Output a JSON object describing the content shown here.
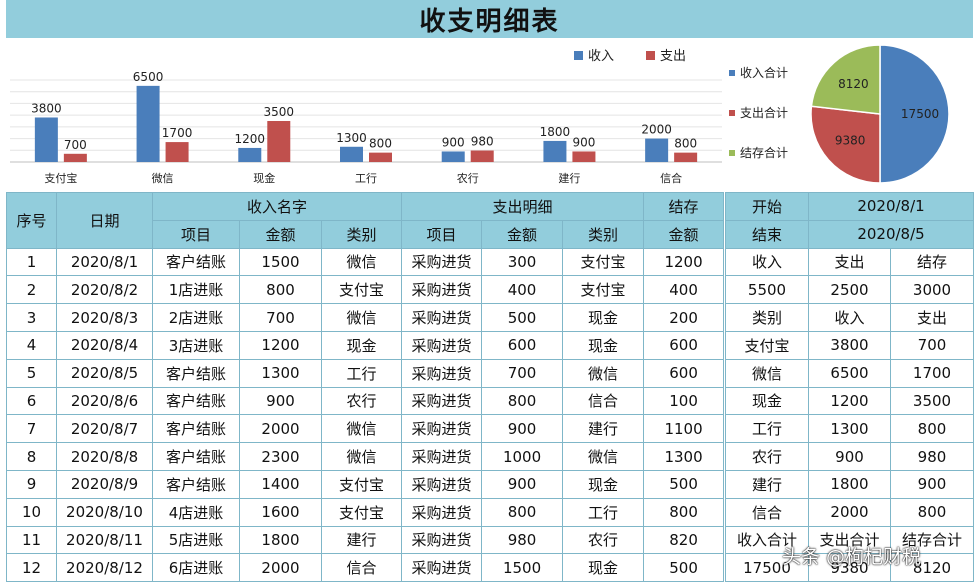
{
  "title": "收支明细表",
  "colors": {
    "income": "#4a7ebb",
    "expense": "#c0504d",
    "balance": "#9bbb59",
    "header": "#92cddc"
  },
  "chart_data": [
    {
      "type": "bar",
      "categories": [
        "支付宝",
        "微信",
        "现金",
        "工行",
        "农行",
        "建行",
        "信合"
      ],
      "series": [
        {
          "name": "收入",
          "values": [
            3800,
            6500,
            1200,
            1300,
            900,
            1800,
            2000
          ]
        },
        {
          "name": "支出",
          "values": [
            700,
            1700,
            3500,
            800,
            980,
            900,
            800
          ]
        }
      ],
      "legend": "top-right",
      "grid": true
    },
    {
      "type": "pie",
      "labels": [
        "收入合计",
        "支出合计",
        "结存合计"
      ],
      "values": [
        17500,
        9380,
        8120
      ],
      "legend": "left"
    }
  ],
  "table": {
    "headers": {
      "seq": "序号",
      "date": "日期",
      "income_group": "收入名字",
      "expense_group": "支出明细",
      "balance_top": "结存",
      "balance_bottom": "金额",
      "item": "项目",
      "amount": "金额",
      "category": "类别"
    },
    "rows": [
      [
        "1",
        "2020/8/1",
        "客户结账",
        "1500",
        "微信",
        "采购进货",
        "300",
        "支付宝",
        "1200"
      ],
      [
        "2",
        "2020/8/2",
        "1店进账",
        "800",
        "支付宝",
        "采购进货",
        "400",
        "支付宝",
        "400"
      ],
      [
        "3",
        "2020/8/3",
        "2店进账",
        "700",
        "微信",
        "采购进货",
        "500",
        "现金",
        "200"
      ],
      [
        "4",
        "2020/8/4",
        "3店进账",
        "1200",
        "现金",
        "采购进货",
        "600",
        "现金",
        "600"
      ],
      [
        "5",
        "2020/8/5",
        "客户结账",
        "1300",
        "工行",
        "采购进货",
        "700",
        "微信",
        "600"
      ],
      [
        "6",
        "2020/8/6",
        "客户结账",
        "900",
        "农行",
        "采购进货",
        "800",
        "信合",
        "100"
      ],
      [
        "7",
        "2020/8/7",
        "客户结账",
        "2000",
        "微信",
        "采购进货",
        "900",
        "建行",
        "1100"
      ],
      [
        "8",
        "2020/8/8",
        "客户结账",
        "2300",
        "微信",
        "采购进货",
        "1000",
        "微信",
        "1300"
      ],
      [
        "9",
        "2020/8/9",
        "客户结账",
        "1400",
        "支付宝",
        "采购进货",
        "900",
        "现金",
        "500"
      ],
      [
        "10",
        "2020/8/10",
        "4店进账",
        "1600",
        "支付宝",
        "采购进货",
        "800",
        "工行",
        "800"
      ],
      [
        "11",
        "2020/8/11",
        "5店进账",
        "1800",
        "建行",
        "采购进货",
        "980",
        "农行",
        "820"
      ],
      [
        "12",
        "2020/8/12",
        "6店进账",
        "2000",
        "信合",
        "采购进货",
        "1500",
        "现金",
        "500"
      ]
    ]
  },
  "summary": {
    "start_label": "开始",
    "start_date": "2020/8/1",
    "end_label": "结束",
    "end_date": "2020/8/5",
    "rows": [
      [
        "收入",
        "支出",
        "结存"
      ],
      [
        "5500",
        "2500",
        "3000"
      ],
      [
        "类别",
        "收入",
        "支出"
      ],
      [
        "支付宝",
        "3800",
        "700"
      ],
      [
        "微信",
        "6500",
        "1700"
      ],
      [
        "现金",
        "1200",
        "3500"
      ],
      [
        "工行",
        "1300",
        "800"
      ],
      [
        "农行",
        "900",
        "980"
      ],
      [
        "建行",
        "1800",
        "900"
      ],
      [
        "信合",
        "2000",
        "800"
      ],
      [
        "收入合计",
        "支出合计",
        "结存合计"
      ],
      [
        "17500",
        "9380",
        "8120"
      ]
    ]
  },
  "watermark": "头条 @枸杞财税"
}
